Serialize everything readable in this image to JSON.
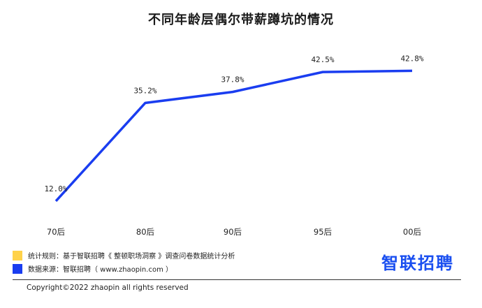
{
  "chart_data": {
    "type": "line",
    "title": "不同年龄层偶尔带薪蹲坑的情况",
    "categories": [
      "70后",
      "80后",
      "90后",
      "95后",
      "00后"
    ],
    "values": [
      12.0,
      35.2,
      37.8,
      42.5,
      42.8
    ],
    "value_labels": [
      "12.0%",
      "35.2%",
      "37.8%",
      "42.5%",
      "42.8%"
    ],
    "unit": "%",
    "ylim": [
      10,
      45
    ],
    "grid": false,
    "line_color": "#1a3df0"
  },
  "legend": {
    "rule": "统计规则：基于智联招聘《 整顿职场洞察 》调查问卷数据统计分析",
    "source": "数据来源：智联招聘（ www.zhaopin.com ）",
    "rule_color": "#ffd24a",
    "source_color": "#1a3df0"
  },
  "brand": "智联招聘",
  "footer": "Copyright©2022 zhaopin all rights reserved"
}
